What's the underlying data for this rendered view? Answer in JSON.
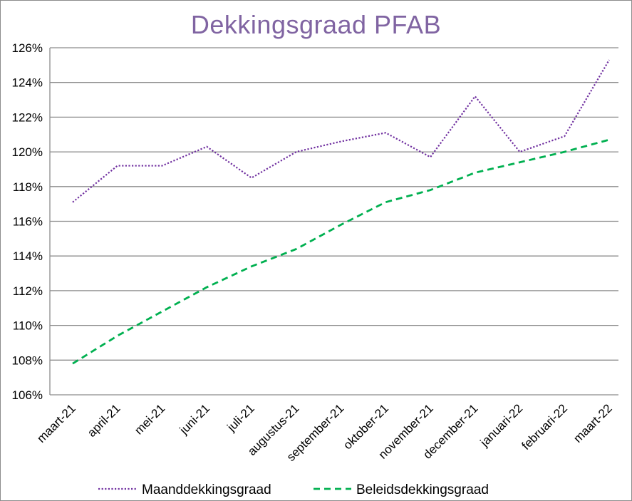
{
  "chart_data": {
    "type": "line",
    "title": "Dekkingsgraad  PFAB",
    "categories": [
      "maart-21",
      "april-21",
      "mei-21",
      "juni-21",
      "juli-21",
      "augustus-21",
      "september-21",
      "oktober-21",
      "november-21",
      "december-21",
      "januari-22",
      "februari-22",
      "maart-22"
    ],
    "y_ticks": [
      "106%",
      "108%",
      "110%",
      "112%",
      "114%",
      "116%",
      "118%",
      "120%",
      "122%",
      "124%",
      "126%"
    ],
    "ylim": [
      106,
      126
    ],
    "y_step": 2,
    "grid": true,
    "legend_position": "bottom",
    "series": [
      {
        "name": "Maanddekkingsgraad",
        "color": "#7030a0",
        "style": "dotted",
        "values": [
          117.1,
          119.2,
          119.2,
          120.3,
          118.5,
          120.0,
          120.6,
          121.1,
          119.7,
          123.2,
          120.0,
          120.9,
          125.3
        ]
      },
      {
        "name": "Beleidsdekkingsgraad",
        "color": "#00b050",
        "style": "dashed",
        "values": [
          107.8,
          109.4,
          110.8,
          112.2,
          113.4,
          114.4,
          115.8,
          117.1,
          117.8,
          118.8,
          119.4,
          120.0,
          120.7
        ]
      }
    ]
  }
}
